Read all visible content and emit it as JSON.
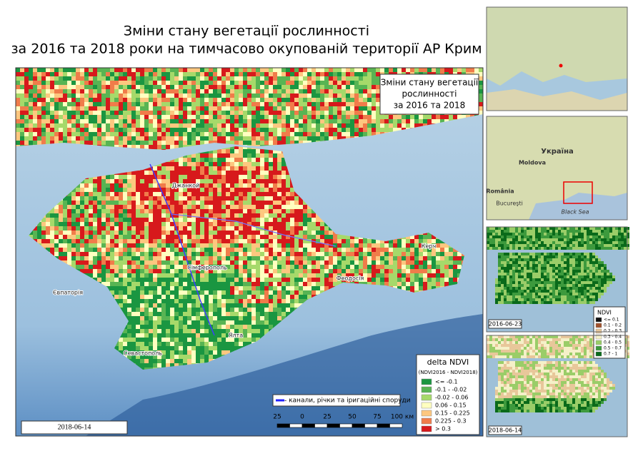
{
  "header": {
    "title_line1": "Зміни стану вегетації рослинності",
    "title_line2": "за 2016 та 2018 роки на тимчасово окупованій території АР Крим"
  },
  "map": {
    "box_title": [
      "Зміни стану вегетації",
      "рослинності",
      "за 2016 та 2018"
    ],
    "date": "2018-06-14",
    "places": [
      "Євпаторія",
      "Сімферополь",
      "Севастополь",
      "Джанкой",
      "Феодосія",
      "Керч",
      "Ялта"
    ],
    "canal_legend": "- канали, річки та іригаційні споруди",
    "scale_labels": [
      "25",
      "0",
      "25",
      "50",
      "75",
      "100 км"
    ],
    "legend": {
      "title": "delta NDVI",
      "subtitle": "(NDVI2016 - NDVI2018)",
      "classes": [
        {
          "label": "<= -0.1",
          "color": "#1a9641"
        },
        {
          "label": "-0.1 - -0.02",
          "color": "#58b453"
        },
        {
          "label": "-0.02 - 0.06",
          "color": "#a6d96a"
        },
        {
          "label": "0.06 - 0.15",
          "color": "#ffffc0"
        },
        {
          "label": "0.15 - 0.225",
          "color": "#fdc77f"
        },
        {
          "label": "0.225 - 0.3",
          "color": "#f07c4a"
        },
        {
          "label": "> 0.3",
          "color": "#d7191c"
        }
      ]
    }
  },
  "insets": {
    "overview_labels": [
      "Україна",
      "Moldova",
      "România",
      "Bucureşti",
      "Black Sea"
    ],
    "ndvi_2016": {
      "date": "2016-06-23"
    },
    "ndvi_2018": {
      "date": "2018-06-14"
    },
    "ndvi_legend": {
      "title": "NDVI",
      "classes": [
        {
          "label": "<= 0.1",
          "color": "#111111"
        },
        {
          "label": "0.1 - 0.2",
          "color": "#a0522d"
        },
        {
          "label": "0.2 - 0.3",
          "color": "#e8c79a"
        },
        {
          "label": "0.3 - 0.4",
          "color": "#f5f0c8"
        },
        {
          "label": "0.4 - 0.5",
          "color": "#9acd68"
        },
        {
          "label": "0.5 - 0.7",
          "color": "#3d9a3d"
        },
        {
          "label": "0.7 - 1",
          "color": "#0a6a1a"
        }
      ]
    }
  }
}
